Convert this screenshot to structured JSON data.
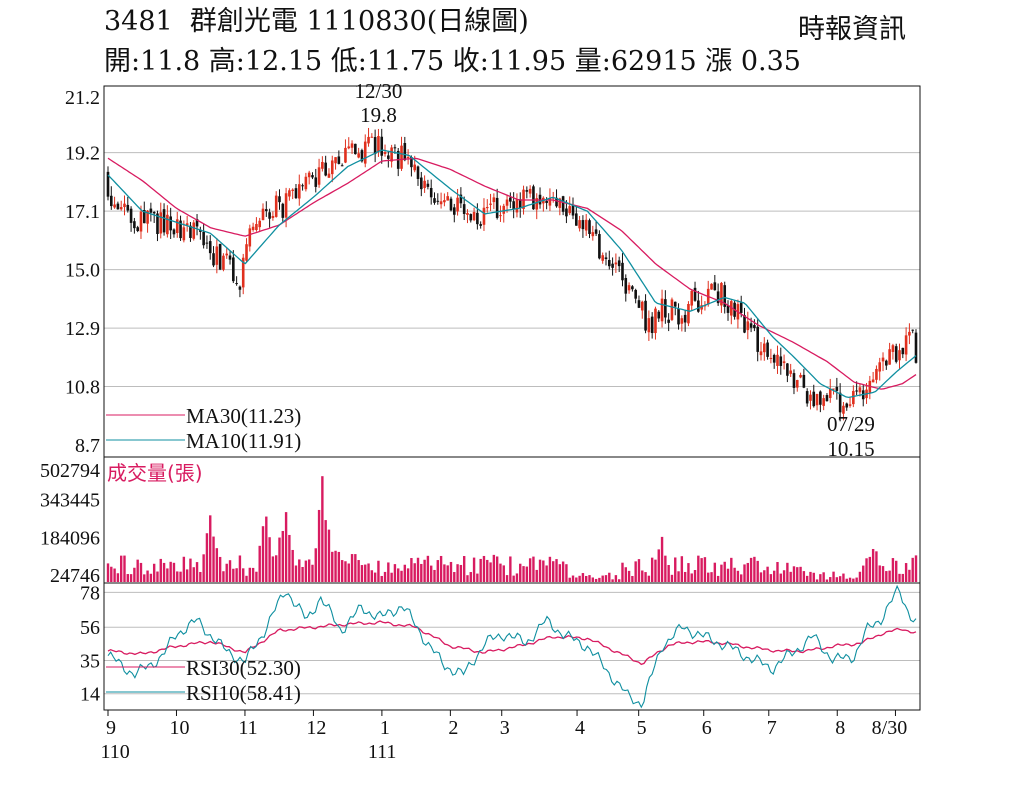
{
  "header": {
    "code": "3481",
    "name": "群創光電",
    "date": "1110830",
    "chart_kind": "(日線圖)",
    "ohlc_text": "開:11.8 高:12.15 低:11.75 收:11.95 量:62915 漲 0.35",
    "source": "時報資訊"
  },
  "colors": {
    "up": "#e0301e",
    "down": "#111111",
    "ma30": "#d81b60",
    "ma10": "#0f8fa0",
    "volume": "#d81b60",
    "rsi30": "#d81b60",
    "rsi10": "#0f8fa0",
    "grid": "#bdbdbd"
  },
  "chart_data": [
    {
      "type": "candlestick",
      "panel": "price",
      "ylim": [
        8.7,
        21.2
      ],
      "yticks": [
        "21.2",
        "19.2",
        "17.1",
        "15.0",
        "12.9",
        "10.8",
        "8.7"
      ],
      "annotations": [
        {
          "label_top": "12/30",
          "label_bottom": "19.8",
          "value": 19.8,
          "month_index": 3.95
        },
        {
          "label_top": "07/29",
          "label_bottom": "10.15",
          "value": 10.15,
          "month_index": 10.85
        }
      ],
      "ma_keyframes": {
        "ma10": [
          [
            0,
            18.4
          ],
          [
            0.5,
            17.1
          ],
          [
            1.5,
            16.3
          ],
          [
            2.0,
            15.2
          ],
          [
            2.5,
            16.6
          ],
          [
            3.0,
            17.6
          ],
          [
            3.5,
            18.7
          ],
          [
            4.0,
            19.3
          ],
          [
            4.4,
            19.1
          ],
          [
            5.0,
            17.9
          ],
          [
            5.5,
            17.0
          ],
          [
            6.0,
            17.2
          ],
          [
            6.5,
            17.6
          ],
          [
            7.0,
            17.1
          ],
          [
            7.5,
            15.7
          ],
          [
            8.0,
            13.8
          ],
          [
            8.5,
            13.5
          ],
          [
            9.0,
            14.0
          ],
          [
            9.3,
            13.8
          ],
          [
            9.7,
            12.6
          ],
          [
            10.0,
            11.9
          ],
          [
            10.4,
            10.9
          ],
          [
            10.8,
            10.4
          ],
          [
            11.2,
            10.6
          ],
          [
            11.5,
            11.3
          ],
          [
            11.8,
            11.91
          ]
        ],
        "ma30": [
          [
            0,
            19.0
          ],
          [
            0.5,
            18.2
          ],
          [
            1.0,
            17.2
          ],
          [
            1.5,
            16.5
          ],
          [
            2.0,
            16.2
          ],
          [
            2.5,
            16.6
          ],
          [
            3.0,
            17.4
          ],
          [
            3.5,
            18.1
          ],
          [
            4.0,
            18.9
          ],
          [
            4.5,
            19.0
          ],
          [
            5.0,
            18.6
          ],
          [
            5.5,
            18.0
          ],
          [
            6.0,
            17.5
          ],
          [
            6.5,
            17.5
          ],
          [
            7.0,
            17.2
          ],
          [
            7.5,
            16.4
          ],
          [
            8.0,
            15.2
          ],
          [
            8.5,
            14.3
          ],
          [
            9.0,
            13.8
          ],
          [
            9.5,
            13.0
          ],
          [
            10.0,
            12.4
          ],
          [
            10.5,
            11.7
          ],
          [
            10.9,
            10.95
          ],
          [
            11.3,
            10.7
          ],
          [
            11.6,
            10.9
          ],
          [
            11.8,
            11.23
          ]
        ]
      },
      "legend": [
        {
          "name": "MA30(11.23)",
          "color": "#d81b60"
        },
        {
          "name": "MA10(11.91)",
          "color": "#0f8fa0"
        }
      ]
    },
    {
      "type": "bar",
      "panel": "volume",
      "title": "成交量(張)",
      "ylim": [
        0,
        502794
      ],
      "yticks": [
        "502794",
        "343445",
        "184096",
        "24746"
      ],
      "peaks": [
        [
          1.5,
          300000
        ],
        [
          2.3,
          330000
        ],
        [
          2.6,
          380000
        ],
        [
          3.15,
          500000
        ],
        [
          3.35,
          210000
        ],
        [
          3.6,
          190000
        ],
        [
          8.1,
          210000
        ],
        [
          11.2,
          165000
        ]
      ]
    },
    {
      "type": "line",
      "panel": "rsi",
      "ylim": [
        5,
        82
      ],
      "yticks": [
        "78",
        "56",
        "35",
        "14"
      ],
      "keyframes": {
        "rsi30": [
          [
            0,
            41
          ],
          [
            0.5,
            39
          ],
          [
            1.0,
            44
          ],
          [
            1.5,
            47
          ],
          [
            2.0,
            40
          ],
          [
            2.5,
            54
          ],
          [
            3.0,
            56
          ],
          [
            3.5,
            58
          ],
          [
            4.0,
            59
          ],
          [
            4.5,
            56
          ],
          [
            5.0,
            44
          ],
          [
            5.5,
            40
          ],
          [
            6.0,
            44
          ],
          [
            6.5,
            50
          ],
          [
            7.0,
            49
          ],
          [
            7.4,
            41
          ],
          [
            7.8,
            33
          ],
          [
            8.2,
            45
          ],
          [
            8.6,
            47
          ],
          [
            9.0,
            46
          ],
          [
            9.4,
            43
          ],
          [
            9.8,
            41
          ],
          [
            10.2,
            41
          ],
          [
            10.6,
            44
          ],
          [
            11.0,
            46
          ],
          [
            11.3,
            52
          ],
          [
            11.6,
            55
          ],
          [
            11.8,
            52.3
          ]
        ],
        "rsi10": [
          [
            0,
            38
          ],
          [
            0.4,
            26
          ],
          [
            0.8,
            38
          ],
          [
            1.0,
            52
          ],
          [
            1.3,
            60
          ],
          [
            1.7,
            42
          ],
          [
            2.0,
            34
          ],
          [
            2.3,
            55
          ],
          [
            2.6,
            80
          ],
          [
            2.9,
            60
          ],
          [
            3.1,
            75
          ],
          [
            3.4,
            54
          ],
          [
            3.7,
            68
          ],
          [
            4.0,
            62
          ],
          [
            4.3,
            70
          ],
          [
            4.6,
            50
          ],
          [
            4.9,
            32
          ],
          [
            5.2,
            26
          ],
          [
            5.5,
            46
          ],
          [
            5.8,
            52
          ],
          [
            6.1,
            46
          ],
          [
            6.4,
            60
          ],
          [
            6.7,
            50
          ],
          [
            7.0,
            44
          ],
          [
            7.3,
            28
          ],
          [
            7.6,
            12
          ],
          [
            7.8,
            8
          ],
          [
            8.1,
            45
          ],
          [
            8.4,
            56
          ],
          [
            8.7,
            50
          ],
          [
            9.0,
            45
          ],
          [
            9.4,
            36
          ],
          [
            9.7,
            30
          ],
          [
            10.0,
            40
          ],
          [
            10.3,
            50
          ],
          [
            10.6,
            35
          ],
          [
            10.9,
            38
          ],
          [
            11.1,
            55
          ],
          [
            11.3,
            62
          ],
          [
            11.55,
            80
          ],
          [
            11.7,
            65
          ],
          [
            11.8,
            58.41
          ]
        ]
      },
      "legend": [
        {
          "name": "RSI30(52.30)",
          "color": "#d81b60"
        },
        {
          "name": "RSI10(58.41)",
          "color": "#0f8fa0"
        }
      ]
    }
  ],
  "x_axis": {
    "months": [
      {
        "label": "9",
        "index": 0
      },
      {
        "label": "10",
        "index": 1
      },
      {
        "label": "11",
        "index": 2
      },
      {
        "label": "12",
        "index": 3
      },
      {
        "label": "1",
        "index": 4
      },
      {
        "label": "2",
        "index": 5
      },
      {
        "label": "3",
        "index": 5.75
      },
      {
        "label": "4",
        "index": 6.85
      },
      {
        "label": "5",
        "index": 7.75
      },
      {
        "label": "6",
        "index": 8.7
      },
      {
        "label": "7",
        "index": 9.65
      },
      {
        "label": "8",
        "index": 10.65
      },
      {
        "label": "8/30",
        "index": 11.5
      }
    ],
    "year_labels": [
      {
        "label": "110",
        "index": 0.25
      },
      {
        "label": "111",
        "index": 4.15
      }
    ]
  }
}
